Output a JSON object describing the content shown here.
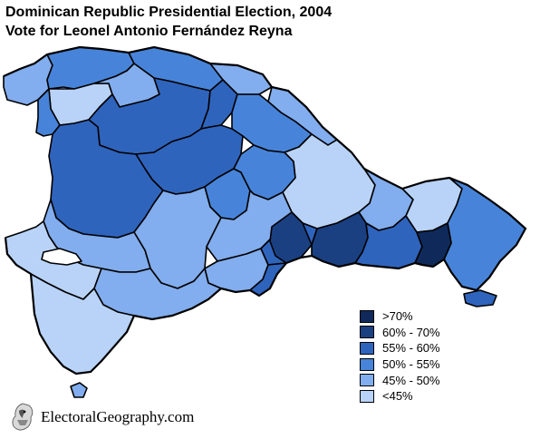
{
  "title": {
    "line1": "Dominican Republic Presidential Election, 2004",
    "line2": "Vote for Leonel Antonio Fernández Reyna"
  },
  "legend": [
    {
      "label": ">70%",
      "color": "#0f2a5a"
    },
    {
      "label": "60% - 70%",
      "color": "#1a4082"
    },
    {
      "label": "55% - 60%",
      "color": "#2f64bd"
    },
    {
      "label": "50% - 55%",
      "color": "#4784d9"
    },
    {
      "label": "45% - 50%",
      "color": "#82adee"
    },
    {
      "label": "<45%",
      "color": "#b9d3f8"
    }
  ],
  "credit": {
    "text": "ElectoralGeography.com",
    "logo_icon": "eagle-logo-icon"
  },
  "regions": [
    {
      "id": "montecristi",
      "category": 4
    },
    {
      "id": "puerto-plata",
      "category": 3
    },
    {
      "id": "espaillat",
      "category": 3
    },
    {
      "id": "maria-trinidad-sanchez",
      "category": 4
    },
    {
      "id": "samana",
      "category": 4
    },
    {
      "id": "valverde",
      "category": 5
    },
    {
      "id": "santiago-rodriguez",
      "category": 4
    },
    {
      "id": "dajabon",
      "category": 3
    },
    {
      "id": "santiago",
      "category": 2
    },
    {
      "id": "hermanas-mirabal",
      "category": 2
    },
    {
      "id": "duarte",
      "category": 3
    },
    {
      "id": "la-vega",
      "category": 2
    },
    {
      "id": "monsenor-nouel",
      "category": 3
    },
    {
      "id": "sanchez-ramirez",
      "category": 3
    },
    {
      "id": "monte-plata",
      "category": 5
    },
    {
      "id": "hato-mayor",
      "category": 4
    },
    {
      "id": "el-seibo",
      "category": 5
    },
    {
      "id": "la-altagracia",
      "category": 3
    },
    {
      "id": "elias-pina",
      "category": 2
    },
    {
      "id": "san-juan",
      "category": 4
    },
    {
      "id": "azua",
      "category": 4
    },
    {
      "id": "san-jose-de-ocoa",
      "category": 4
    },
    {
      "id": "san-cristobal",
      "category": 2
    },
    {
      "id": "santo-domingo",
      "category": 1
    },
    {
      "id": "distrito-nacional",
      "category": 1
    },
    {
      "id": "san-pedro-de-macoris",
      "category": 2
    },
    {
      "id": "la-romana",
      "category": 0
    },
    {
      "id": "peravia",
      "category": 2
    },
    {
      "id": "bahoruco",
      "category": 4
    },
    {
      "id": "independencia",
      "category": 5
    },
    {
      "id": "barahona",
      "category": 4
    },
    {
      "id": "pedernales",
      "category": 5
    },
    {
      "id": "saona-island",
      "category": 2
    },
    {
      "id": "beata-island",
      "category": 4
    }
  ]
}
